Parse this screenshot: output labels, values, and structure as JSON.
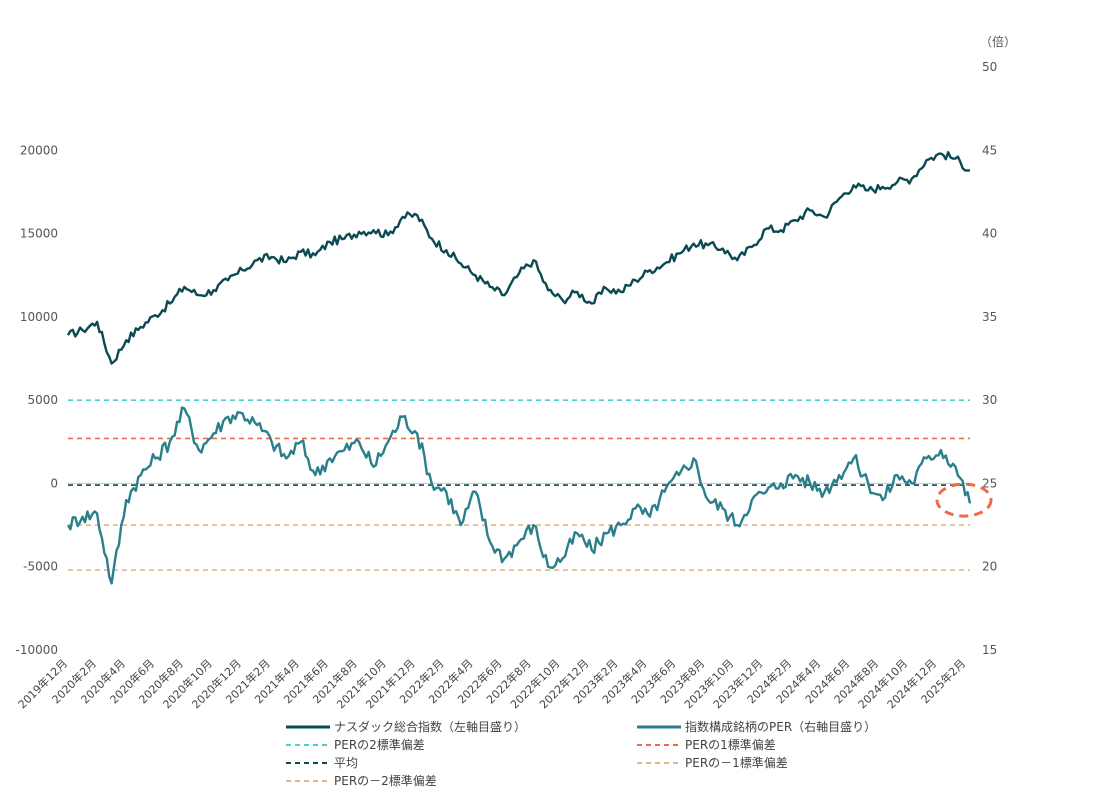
{
  "chart_data": {
    "type": "line",
    "title": "",
    "xlabel": "",
    "y_left": {
      "ylim": [
        -10000,
        25000
      ],
      "ticks": [
        -10000,
        -5000,
        0,
        5000,
        10000,
        15000,
        20000
      ]
    },
    "y_right": {
      "unit": "（倍）",
      "ylim": [
        15,
        50
      ],
      "ticks": [
        15,
        20,
        25,
        30,
        35,
        40,
        45,
        50
      ]
    },
    "x_ticks": [
      "2019年12月",
      "2020年2月",
      "2020年4月",
      "2020年6月",
      "2020年8月",
      "2020年10月",
      "2020年12月",
      "2021年2月",
      "2021年4月",
      "2021年6月",
      "2021年8月",
      "2021年10月",
      "2021年12月",
      "2022年2月",
      "2022年4月",
      "2022年6月",
      "2022年8月",
      "2022年10月",
      "2022年12月",
      "2023年2月",
      "2023年4月",
      "2023年6月",
      "2023年8月",
      "2023年10月",
      "2023年12月",
      "2024年2月",
      "2024年4月",
      "2024年6月",
      "2024年8月",
      "2024年10月",
      "2024年12月",
      "2025年2月"
    ],
    "x": [
      "2019-12",
      "2020-01",
      "2020-02",
      "2020-03",
      "2020-04",
      "2020-05",
      "2020-06",
      "2020-07",
      "2020-08",
      "2020-09",
      "2020-10",
      "2020-11",
      "2020-12",
      "2021-01",
      "2021-02",
      "2021-03",
      "2021-04",
      "2021-05",
      "2021-06",
      "2021-07",
      "2021-08",
      "2021-09",
      "2021-10",
      "2021-11",
      "2021-12",
      "2022-01",
      "2022-02",
      "2022-03",
      "2022-04",
      "2022-05",
      "2022-06",
      "2022-07",
      "2022-08",
      "2022-09",
      "2022-10",
      "2022-11",
      "2022-12",
      "2023-01",
      "2023-02",
      "2023-03",
      "2023-04",
      "2023-05",
      "2023-06",
      "2023-07",
      "2023-08",
      "2023-09",
      "2023-10",
      "2023-11",
      "2023-12",
      "2024-01",
      "2024-02",
      "2024-03",
      "2024-04",
      "2024-05",
      "2024-06",
      "2024-07",
      "2024-08",
      "2024-09",
      "2024-10",
      "2024-11",
      "2024-12",
      "2025-01",
      "2025-02"
    ],
    "series": [
      {
        "name": "ナスダック総合指数（左軸目盛り）",
        "axis": "left",
        "color": "#0b4a52",
        "values": [
          8900,
          9200,
          9700,
          7200,
          8600,
          9400,
          10100,
          10800,
          11800,
          11300,
          11600,
          12200,
          12800,
          13400,
          13600,
          13300,
          13900,
          13700,
          14500,
          14700,
          15100,
          15200,
          14900,
          16000,
          16100,
          14700,
          14000,
          13200,
          12500,
          11800,
          11300,
          12600,
          13400,
          11600,
          11000,
          11500,
          10800,
          11700,
          11500,
          12200,
          12800,
          13200,
          13800,
          14400,
          14300,
          14100,
          13400,
          14200,
          15300,
          15200,
          15800,
          16400,
          16000,
          17100,
          17900,
          17600,
          17800,
          18100,
          18300,
          19400,
          19800,
          19500,
          18800
        ]
      },
      {
        "name": "指数構成銘柄のPER（右軸目盛り）",
        "axis": "right",
        "color": "#2a7f8b",
        "values": [
          22.5,
          23.0,
          23.2,
          19.0,
          24.0,
          25.5,
          26.5,
          27.5,
          29.5,
          27.0,
          28.0,
          29.0,
          29.2,
          28.5,
          27.5,
          26.5,
          27.5,
          25.5,
          26.5,
          27.0,
          27.5,
          26.0,
          27.5,
          29.0,
          28.0,
          25.0,
          24.5,
          22.5,
          24.5,
          21.5,
          20.5,
          21.5,
          22.5,
          20.0,
          20.5,
          22.0,
          21.0,
          22.0,
          22.5,
          23.5,
          23.0,
          24.5,
          25.5,
          26.5,
          24.0,
          23.5,
          22.5,
          24.0,
          24.5,
          25.0,
          25.5,
          25.0,
          24.5,
          25.5,
          26.5,
          25.0,
          24.0,
          25.5,
          25.0,
          26.5,
          27.0,
          26.0,
          23.8
        ]
      }
    ],
    "reference_lines": [
      {
        "name": "PERの2標準偏差",
        "axis": "right",
        "value": 30.0,
        "color": "#4fd0c8"
      },
      {
        "name": "PERの1標準偏差",
        "axis": "right",
        "value": 27.7,
        "color": "#ee6b45"
      },
      {
        "name": "平均",
        "axis": "right",
        "value": 24.9,
        "color": "#0b4a52"
      },
      {
        "name": "PERの－1標準偏差",
        "axis": "right",
        "value": 22.5,
        "color": "#e0b88a"
      },
      {
        "name": "PERの－2標準偏差",
        "axis": "right",
        "value": 19.8,
        "color": "#e0b88a"
      }
    ],
    "zero_line": {
      "axis": "left",
      "value": 0,
      "color": "#cccccc"
    },
    "highlight": {
      "shape": "dashed-ellipse",
      "color": "#ee6b45",
      "x": "2025-02",
      "y_right": 24.0
    },
    "legend": {
      "placement": "bottom",
      "items": [
        {
          "label": "ナスダック総合指数（左軸目盛り）",
          "color": "#0b4a52",
          "style": "solid"
        },
        {
          "label": "指数構成銘柄のPER（右軸目盛り）",
          "color": "#2a7f8b",
          "style": "solid"
        },
        {
          "label": "PERの2標準偏差",
          "color": "#4fd0c8",
          "style": "dashed"
        },
        {
          "label": "PERの1標準偏差",
          "color": "#ee6b45",
          "style": "dashed"
        },
        {
          "label": "平均",
          "color": "#0b4a52",
          "style": "dashed"
        },
        {
          "label": "PERの－1標準偏差",
          "color": "#e0b88a",
          "style": "dashed"
        },
        {
          "label": "PERの－2標準偏差",
          "color": "#e0b88a",
          "style": "dashed"
        }
      ]
    },
    "grid": false
  }
}
